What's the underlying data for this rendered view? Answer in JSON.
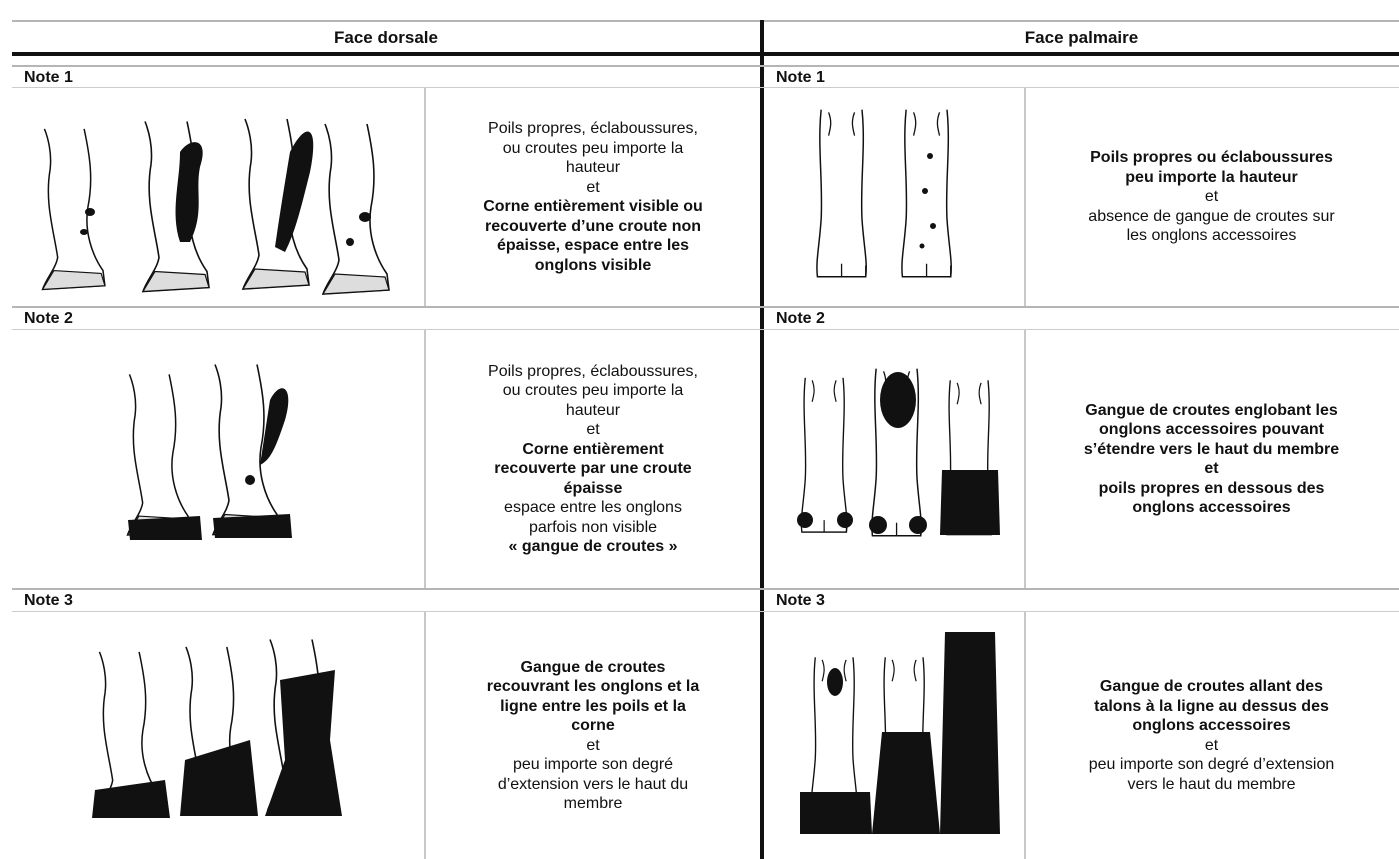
{
  "header": {
    "columns": [
      "Face dorsale",
      "Face palmaire"
    ]
  },
  "rows": [
    {
      "dorsal": {
        "note": "Note 1",
        "lines": [
          {
            "text": "Poils propres, éclaboussures,",
            "bold": false
          },
          {
            "text": "ou croutes peu importe la",
            "bold": false
          },
          {
            "text": "hauteur",
            "bold": false
          },
          {
            "text": "et",
            "bold": false
          },
          {
            "text": "Corne entièrement visible ou",
            "bold": true
          },
          {
            "text": "recouverte d’une croute non",
            "bold": true
          },
          {
            "text": "épaisse, espace entre les",
            "bold": true
          },
          {
            "text": "onglons visible",
            "bold": true
          }
        ]
      },
      "palmar": {
        "note": "Note 1",
        "lines": [
          {
            "text": "Poils propres ou éclaboussures",
            "bold": true
          },
          {
            "text": "peu importe la hauteur",
            "bold": true
          },
          {
            "text": "et",
            "bold": false
          },
          {
            "text": "absence de gangue de croutes sur",
            "bold": false
          },
          {
            "text": "les onglons accessoires",
            "bold": false
          }
        ]
      }
    },
    {
      "dorsal": {
        "note": "Note 2",
        "lines": [
          {
            "text": "Poils propres, éclaboussures,",
            "bold": false
          },
          {
            "text": "ou croutes peu importe la",
            "bold": false
          },
          {
            "text": "hauteur",
            "bold": false
          },
          {
            "text": "et",
            "bold": false
          },
          {
            "text": "Corne entièrement",
            "bold": true
          },
          {
            "text": "recouverte par une croute",
            "bold": true
          },
          {
            "text": "épaisse",
            "bold": true
          },
          {
            "text": "espace entre les onglons",
            "bold": false
          },
          {
            "text": "parfois non visible",
            "bold": false
          },
          {
            "text": "« gangue de croutes »",
            "bold": true
          }
        ]
      },
      "palmar": {
        "note": "Note 2",
        "lines": [
          {
            "text": "Gangue de croutes englobant les",
            "bold": true
          },
          {
            "text": "onglons accessoires pouvant",
            "bold": true
          },
          {
            "text": "s’étendre vers le haut du membre",
            "bold": true
          },
          {
            "text": "et",
            "bold": true
          },
          {
            "text": "poils propres en dessous des",
            "bold": true
          },
          {
            "text": "onglons accessoires",
            "bold": true
          }
        ]
      }
    },
    {
      "dorsal": {
        "note": "Note 3",
        "lines": [
          {
            "text": "Gangue de croutes",
            "bold": true
          },
          {
            "text": "recouvrant les onglons et la",
            "bold": true
          },
          {
            "text": "ligne entre les poils et la",
            "bold": true
          },
          {
            "text": "corne",
            "bold": true
          },
          {
            "text": "et",
            "bold": false
          },
          {
            "text": "peu importe son degré",
            "bold": false
          },
          {
            "text": "d’extension vers le haut du",
            "bold": false
          },
          {
            "text": "membre",
            "bold": false
          }
        ]
      },
      "palmar": {
        "note": "Note 3",
        "lines": [
          {
            "text": "Gangue de croutes allant des",
            "bold": true
          },
          {
            "text": "talons à la ligne au dessus des",
            "bold": true
          },
          {
            "text": "onglons accessoires",
            "bold": true
          },
          {
            "text": "et",
            "bold": false
          },
          {
            "text": "peu importe son degré d’extension",
            "bold": false
          },
          {
            "text": "vers le haut du membre",
            "bold": false
          }
        ]
      }
    }
  ]
}
